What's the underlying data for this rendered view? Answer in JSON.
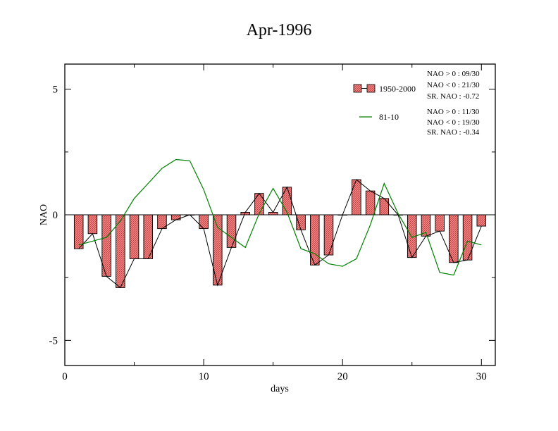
{
  "chart_data": {
    "type": "bar",
    "title": "Apr-1996",
    "xlabel": "days",
    "ylabel": "NAO",
    "xlim": [
      0,
      31
    ],
    "ylim": [
      -6,
      6
    ],
    "xticks": [
      0,
      10,
      20,
      30
    ],
    "yticks": [
      5,
      0,
      -5
    ],
    "ytick_labels": [
      "5",
      "0",
      "-5"
    ],
    "grid": false,
    "legend_position": "top-right",
    "series": [
      {
        "name": "1950-2000",
        "kind": "bar+line",
        "color": "#ff7f7f",
        "x": [
          1,
          2,
          3,
          4,
          5,
          6,
          7,
          8,
          9,
          10,
          11,
          12,
          13,
          14,
          15,
          16,
          17,
          18,
          19,
          20,
          21,
          22,
          23,
          24,
          25,
          26,
          27,
          28,
          29,
          30
        ],
        "values": [
          -1.35,
          -0.75,
          -2.45,
          -2.9,
          -1.75,
          -1.75,
          -0.55,
          -0.2,
          0.0,
          -0.55,
          -2.8,
          -1.3,
          0.1,
          0.85,
          0.1,
          1.1,
          -0.6,
          -2.0,
          -1.6,
          0.0,
          1.4,
          0.95,
          0.65,
          0.0,
          -1.7,
          -0.85,
          -0.65,
          -1.9,
          -1.8,
          -0.45
        ]
      },
      {
        "name": "81-10",
        "kind": "line",
        "color": "#008000",
        "x": [
          1,
          2,
          3,
          4,
          5,
          6,
          7,
          8,
          9,
          10,
          11,
          12,
          13,
          14,
          15,
          16,
          17,
          18,
          19,
          20,
          21,
          22,
          23,
          24,
          25,
          26,
          27,
          28,
          29,
          30
        ],
        "values": [
          -1.2,
          -1.05,
          -0.9,
          -0.25,
          0.65,
          1.25,
          1.85,
          2.2,
          2.15,
          1.0,
          -0.5,
          -0.9,
          -1.3,
          0.05,
          1.05,
          0.1,
          -1.35,
          -1.55,
          -1.95,
          -2.05,
          -1.75,
          -0.4,
          1.25,
          0.05,
          -0.9,
          -0.7,
          -2.3,
          -2.4,
          -1.05,
          -1.2
        ]
      }
    ],
    "annotations": {
      "block1": [
        "NAO > 0 : 09/30",
        "NAO < 0 : 21/30",
        "SR. NAO : -0.72"
      ],
      "block2": [
        "NAO > 0 : 11/30",
        "NAO < 0 : 19/30",
        "SR. NAO : -0.34"
      ]
    }
  }
}
